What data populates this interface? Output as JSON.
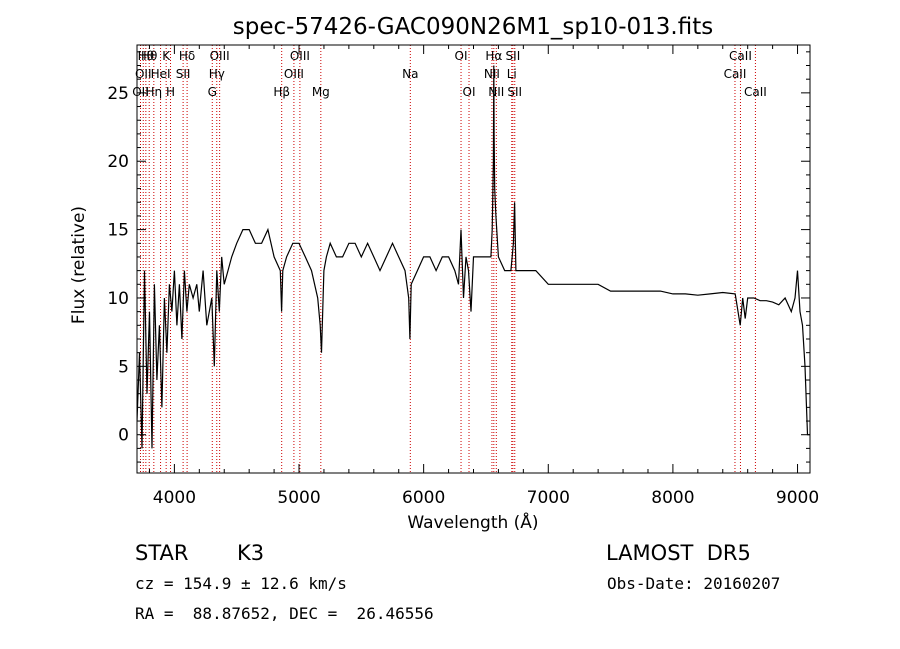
{
  "chart_data": {
    "type": "line",
    "title": "spec-57426-GAC090N26M1_sp10-013.fits",
    "xlabel": "Wavelength (Å)",
    "ylabel": "Flux (relative)",
    "xlim": [
      3700,
      9100
    ],
    "ylim": [
      -2.8,
      28.5
    ],
    "xticks": [
      4000,
      5000,
      6000,
      7000,
      8000,
      9000
    ],
    "yticks": [
      0,
      5,
      10,
      15,
      20,
      25
    ],
    "grid": false,
    "series": [
      {
        "color": "#000000",
        "x": [
          3700,
          3720,
          3740,
          3760,
          3780,
          3800,
          3820,
          3840,
          3860,
          3880,
          3900,
          3920,
          3940,
          3960,
          3980,
          4000,
          4020,
          4040,
          4060,
          4080,
          4100,
          4120,
          4150,
          4180,
          4200,
          4230,
          4260,
          4300,
          4320,
          4340,
          4360,
          4380,
          4400,
          4430,
          4460,
          4500,
          4550,
          4600,
          4650,
          4700,
          4750,
          4800,
          4850,
          4860,
          4870,
          4900,
          4950,
          5000,
          5050,
          5100,
          5150,
          5170,
          5180,
          5190,
          5200,
          5220,
          5250,
          5300,
          5350,
          5400,
          5450,
          5500,
          5550,
          5600,
          5650,
          5700,
          5750,
          5800,
          5850,
          5880,
          5890,
          5900,
          5950,
          6000,
          6050,
          6100,
          6150,
          6200,
          6250,
          6280,
          6300,
          6320,
          6340,
          6360,
          6380,
          6400,
          6450,
          6500,
          6540,
          6550,
          6560,
          6563,
          6565,
          6570,
          6580,
          6600,
          6650,
          6700,
          6720,
          6730,
          6740,
          6760,
          6800,
          6900,
          7000,
          7100,
          7200,
          7300,
          7400,
          7500,
          7600,
          7700,
          7800,
          7900,
          8000,
          8100,
          8200,
          8300,
          8400,
          8500,
          8540,
          8560,
          8580,
          8600,
          8650,
          8700,
          8750,
          8800,
          8850,
          8900,
          8950,
          8980,
          9000,
          9020,
          9040,
          9060,
          9080,
          9100
        ],
        "y": [
          1,
          6,
          -1,
          12,
          3,
          9,
          -1,
          11,
          4,
          8,
          2,
          10,
          6,
          11,
          9,
          12,
          8,
          11,
          7,
          12,
          9,
          11,
          10,
          11,
          9,
          12,
          8,
          10,
          5,
          12,
          9,
          13,
          11,
          12,
          13,
          14,
          15,
          15,
          14,
          14,
          15,
          13,
          12,
          9,
          12,
          13,
          14,
          14,
          13,
          12,
          10,
          8,
          6,
          9,
          12,
          13,
          14,
          13,
          13,
          14,
          14,
          13,
          14,
          13,
          12,
          13,
          14,
          13,
          12,
          10,
          7,
          11,
          12,
          13,
          13,
          12,
          13,
          13,
          12,
          11,
          15,
          10,
          13,
          12,
          9,
          13,
          13,
          13,
          13,
          15,
          20,
          27,
          22,
          18,
          16,
          13,
          12,
          12,
          14,
          17,
          12,
          12,
          12,
          12,
          11,
          11,
          11,
          11,
          11,
          10.5,
          10.5,
          10.5,
          10.5,
          10.5,
          10.3,
          10.3,
          10.2,
          10.3,
          10.4,
          10.3,
          8,
          10,
          8.5,
          10,
          10,
          9.8,
          9.8,
          9.7,
          9.5,
          10,
          9,
          10,
          12,
          9,
          8,
          5,
          0,
          0
        ]
      }
    ],
    "line_markers": [
      {
        "wavelength": 3728,
        "label": "OII",
        "row": 2
      },
      {
        "wavelength": 3750,
        "label": "OII",
        "row": 1
      },
      {
        "wavelength": 3771,
        "label": "Hθ",
        "row": 0
      },
      {
        "wavelength": 3798,
        "label": "Hθ",
        "row": 0
      },
      {
        "wavelength": 3835,
        "label": "Hη",
        "row": 2
      },
      {
        "wavelength": 3889,
        "label": "HeI",
        "row": 1
      },
      {
        "wavelength": 3934,
        "label": "K",
        "row": 0
      },
      {
        "wavelength": 3969,
        "label": "H",
        "row": 2
      },
      {
        "wavelength": 4102,
        "label": "Hδ",
        "row": 0
      },
      {
        "wavelength": 4070,
        "label": "SII",
        "row": 1
      },
      {
        "wavelength": 4304,
        "label": "G",
        "row": 2
      },
      {
        "wavelength": 4340,
        "label": "Hγ",
        "row": 1
      },
      {
        "wavelength": 4363,
        "label": "OIII",
        "row": 0
      },
      {
        "wavelength": 4861,
        "label": "Hβ",
        "row": 2
      },
      {
        "wavelength": 4959,
        "label": "OIII",
        "row": 1
      },
      {
        "wavelength": 5007,
        "label": "OIII",
        "row": 0
      },
      {
        "wavelength": 5175,
        "label": "Mg",
        "row": 2
      },
      {
        "wavelength": 5893,
        "label": "Na",
        "row": 1
      },
      {
        "wavelength": 6300,
        "label": "OI",
        "row": 0
      },
      {
        "wavelength": 6364,
        "label": "OI",
        "row": 2
      },
      {
        "wavelength": 6548,
        "label": "NII",
        "row": 1
      },
      {
        "wavelength": 6563,
        "label": "Hα",
        "row": 0
      },
      {
        "wavelength": 6583,
        "label": "NII",
        "row": 2
      },
      {
        "wavelength": 6707,
        "label": "Li",
        "row": 1
      },
      {
        "wavelength": 6716,
        "label": "SII",
        "row": 0
      },
      {
        "wavelength": 6731,
        "label": "SII",
        "row": 2
      },
      {
        "wavelength": 8498,
        "label": "CaII",
        "row": 1
      },
      {
        "wavelength": 8542,
        "label": "CaII",
        "row": 0
      },
      {
        "wavelength": 8662,
        "label": "CaII",
        "row": 2
      }
    ],
    "marker_color": "#cc0000"
  },
  "info": {
    "object_class": "STAR",
    "subclass": "K3",
    "survey": "LAMOST  DR5",
    "redshift_line": "cz = 154.9 ± 12.6 km/s",
    "obs_date": "Obs-Date: 20160207",
    "coords": "RA =  88.87652, DEC =  26.46556"
  }
}
